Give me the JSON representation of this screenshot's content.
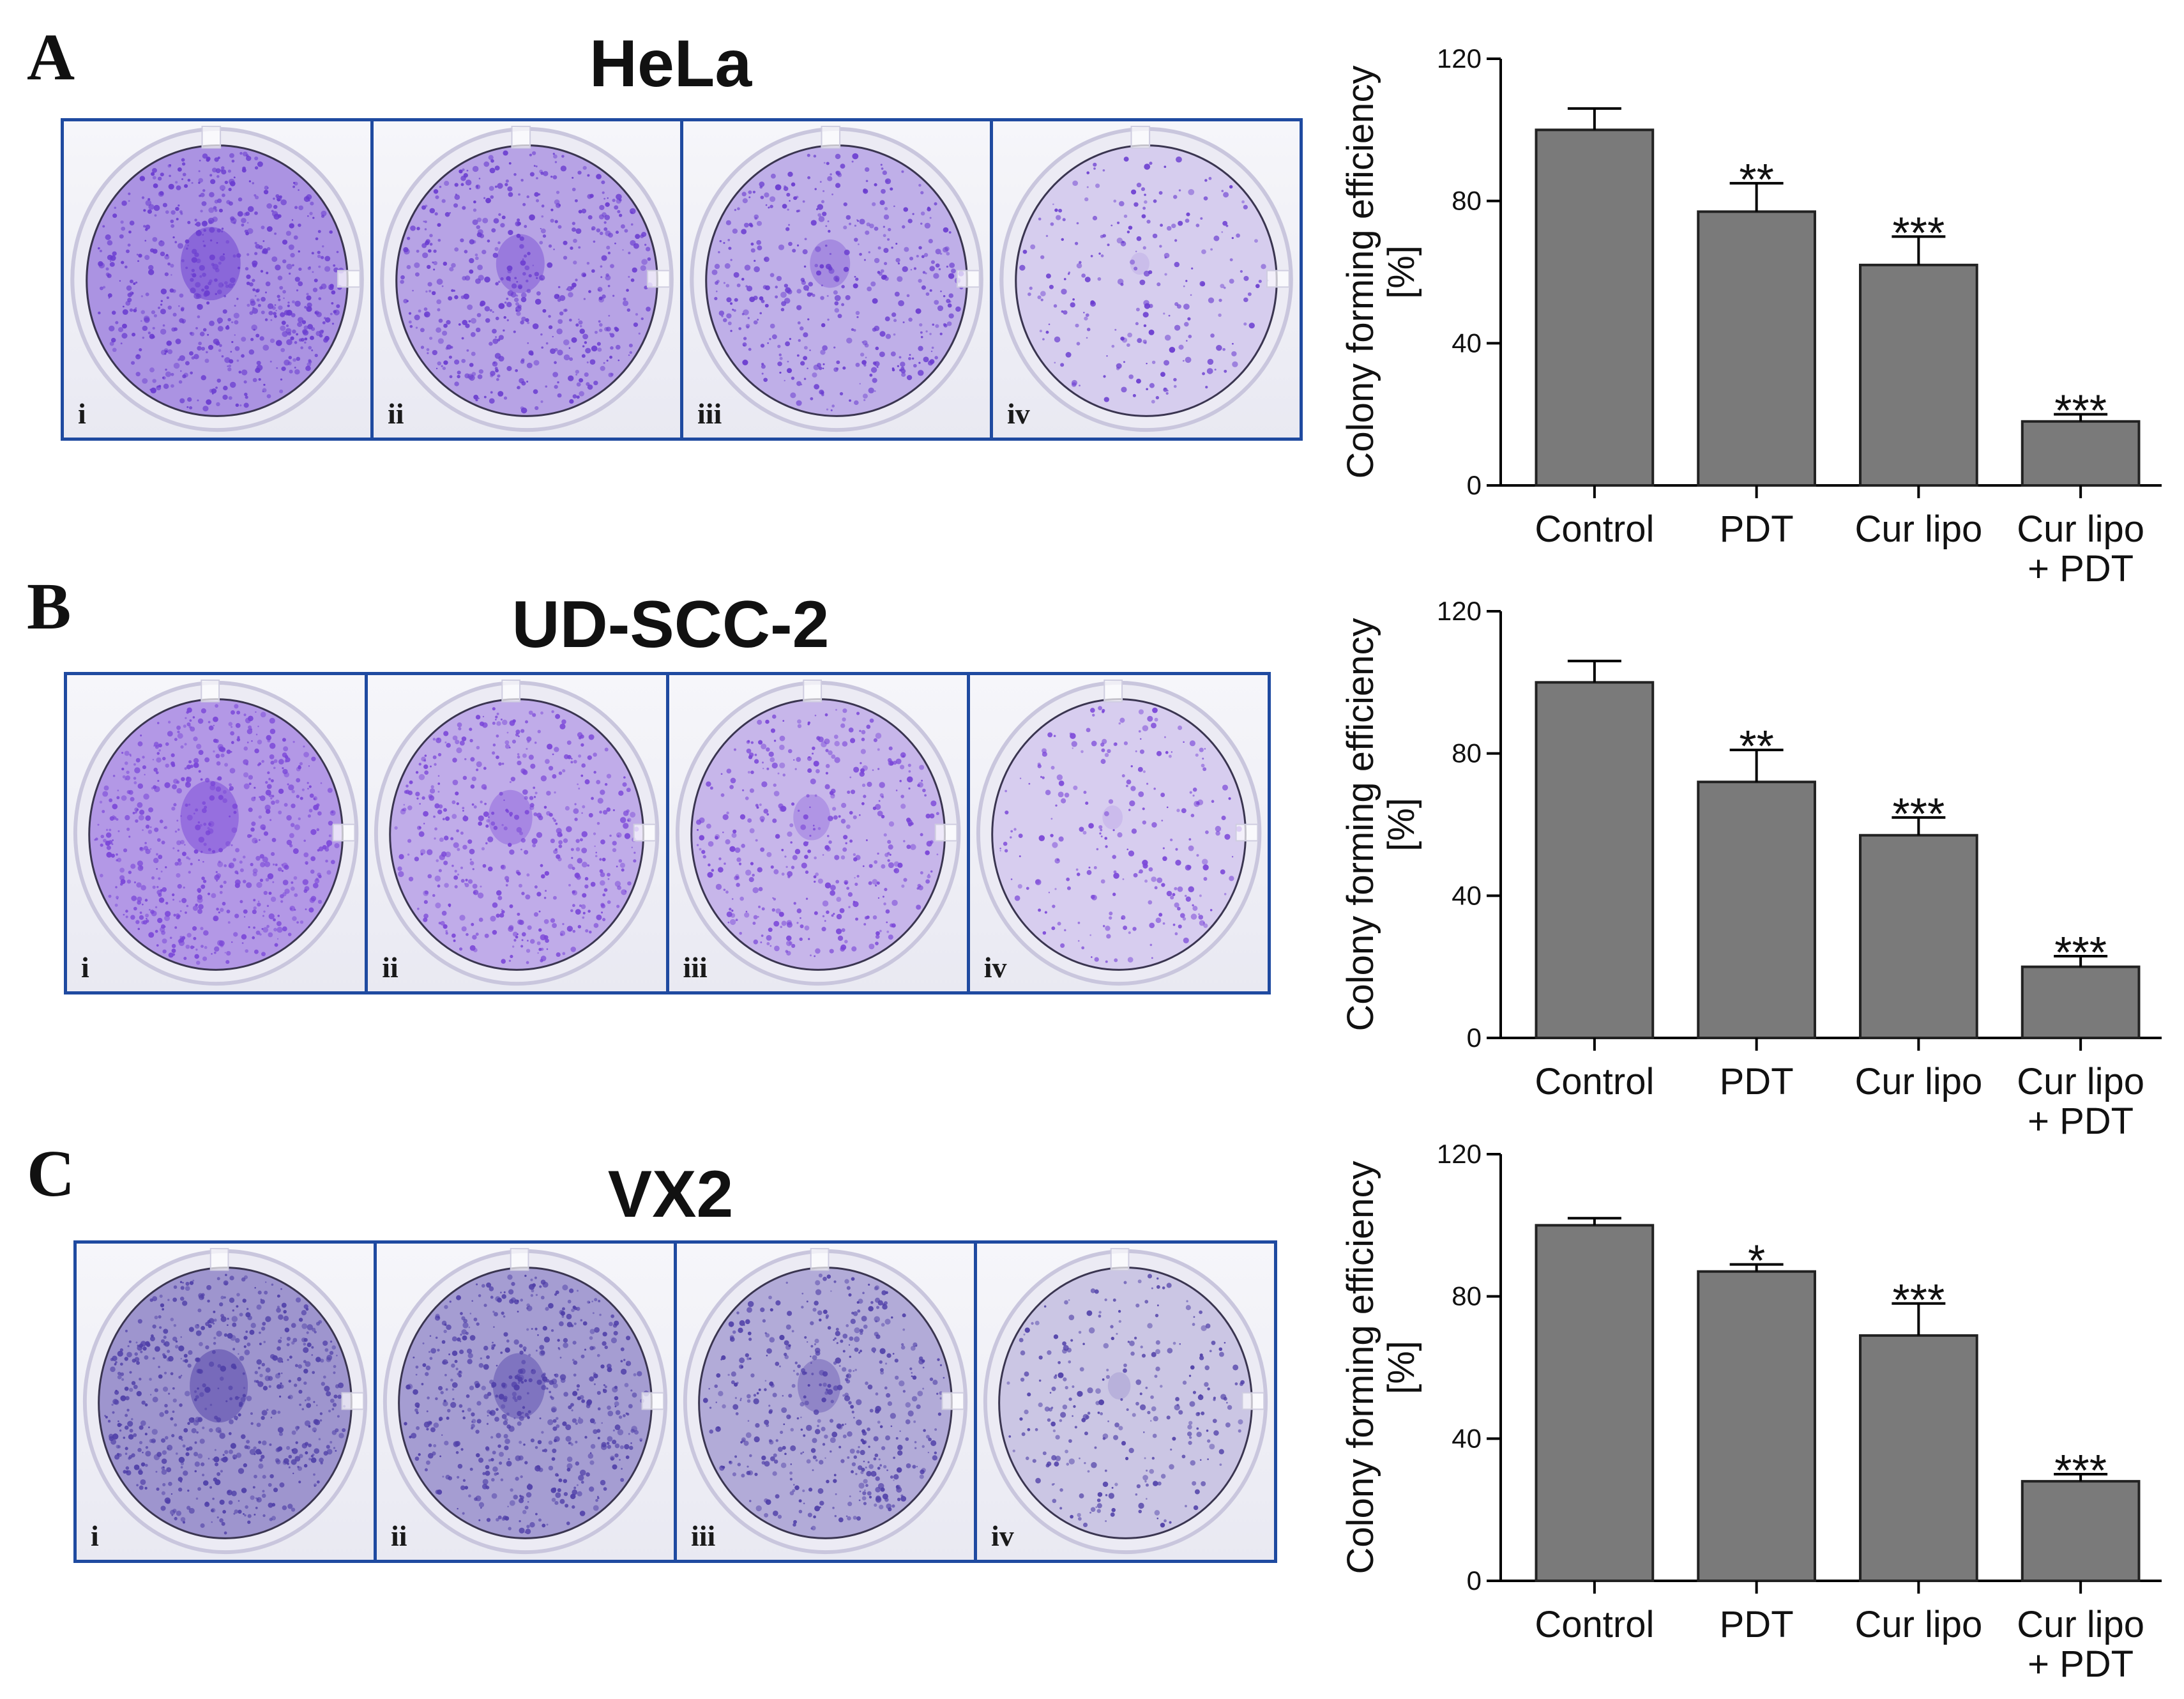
{
  "figure": {
    "panels": [
      {
        "letter": "A",
        "cell_line": "HeLa",
        "well_labels": [
          "i",
          "ii",
          "iii",
          "iv"
        ],
        "stain_color": "#6a3cd0",
        "density": [
          1.0,
          0.78,
          0.62,
          0.22
        ]
      },
      {
        "letter": "B",
        "cell_line": "UD-SCC-2",
        "well_labels": [
          "i",
          "ii",
          "iii",
          "iv"
        ],
        "stain_color": "#7a46d8",
        "density": [
          1.0,
          0.72,
          0.58,
          0.25
        ]
      },
      {
        "letter": "C",
        "cell_line": "VX2",
        "well_labels": [
          "i",
          "ii",
          "iii",
          "iv"
        ],
        "stain_color": "#4f3fa8",
        "density": [
          1.0,
          0.88,
          0.7,
          0.3
        ]
      }
    ]
  },
  "chart_data": [
    {
      "type": "bar",
      "panel": "A",
      "categories": [
        "Control",
        "PDT",
        "Cur lipo",
        "Cur lipo\n+ PDT"
      ],
      "values": [
        100,
        77,
        62,
        18
      ],
      "errors": [
        6,
        8,
        8,
        2
      ],
      "significance": [
        "",
        "**",
        "***",
        "***"
      ],
      "ylabel": "Colony forming efficiency\n[%]",
      "ylim": [
        0,
        120
      ],
      "yticks": [
        0,
        40,
        80,
        120
      ],
      "bar_color": "#7a7a7a"
    },
    {
      "type": "bar",
      "panel": "B",
      "categories": [
        "Control",
        "PDT",
        "Cur lipo",
        "Cur lipo\n+ PDT"
      ],
      "values": [
        100,
        72,
        57,
        20
      ],
      "errors": [
        6,
        9,
        5,
        3
      ],
      "significance": [
        "",
        "**",
        "***",
        "***"
      ],
      "ylabel": "Colony forming efficiency\n[%]",
      "ylim": [
        0,
        120
      ],
      "yticks": [
        0,
        40,
        80,
        120
      ],
      "bar_color": "#7a7a7a"
    },
    {
      "type": "bar",
      "panel": "C",
      "categories": [
        "Control",
        "PDT",
        "Cur lipo",
        "Cur lipo\n+ PDT"
      ],
      "values": [
        100,
        87,
        69,
        28
      ],
      "errors": [
        2,
        2,
        9,
        2
      ],
      "significance": [
        "",
        "*",
        "***",
        "***"
      ],
      "ylabel": "Colony forming efficiency\n[%]",
      "ylim": [
        0,
        120
      ],
      "yticks": [
        0,
        40,
        80,
        120
      ],
      "bar_color": "#7a7a7a"
    }
  ]
}
